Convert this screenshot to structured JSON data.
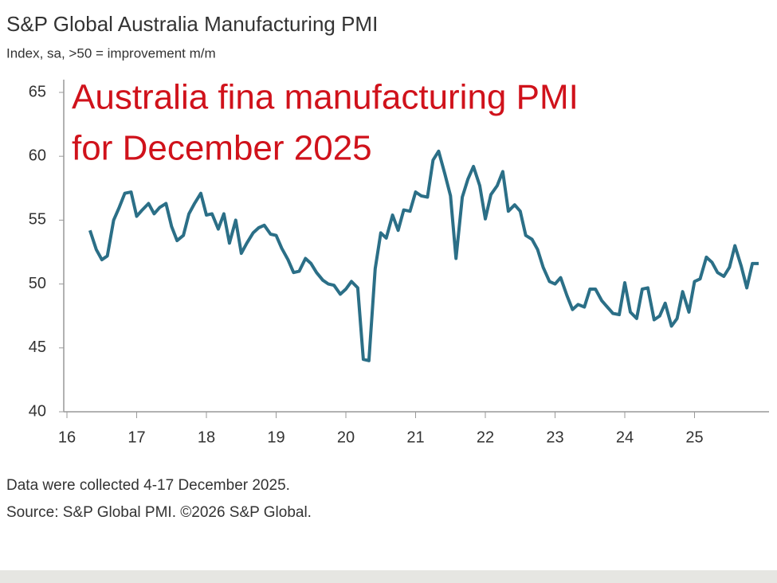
{
  "chart_data": {
    "type": "line",
    "title": "S&P Global Australia Manufacturing PMI",
    "subtitle": "Index, sa, >50 = improvement m/m",
    "annotations": [
      "Australia fina manufacturing PMI",
      "for December 2025"
    ],
    "footnotes": [
      "Data were collected 4-17 December 2025.",
      "Source: S&P Global PMI. ©2026 S&P Global."
    ],
    "xlim": [
      15.95,
      26.07
    ],
    "xticks": [
      16,
      17,
      18,
      19,
      20,
      21,
      22,
      23,
      24,
      25
    ],
    "ylim": [
      40,
      65
    ],
    "yticks": [
      40,
      45,
      50,
      55,
      60,
      65
    ],
    "series": [
      {
        "color": "#2b6f87",
        "x": [
          16.33,
          16.42,
          16.5,
          16.58,
          16.67,
          16.75,
          16.83,
          16.92,
          17,
          17.08,
          17.17,
          17.25,
          17.33,
          17.42,
          17.5,
          17.58,
          17.67,
          17.75,
          17.83,
          17.92,
          18,
          18.08,
          18.17,
          18.25,
          18.33,
          18.42,
          18.5,
          18.58,
          18.67,
          18.75,
          18.83,
          18.92,
          19,
          19.08,
          19.17,
          19.25,
          19.33,
          19.42,
          19.5,
          19.58,
          19.67,
          19.75,
          19.83,
          19.92,
          20,
          20.08,
          20.17,
          20.25,
          20.33,
          20.42,
          20.5,
          20.58,
          20.67,
          20.75,
          20.83,
          20.92,
          21,
          21.08,
          21.17,
          21.25,
          21.33,
          21.42,
          21.5,
          21.58,
          21.67,
          21.75,
          21.83,
          21.92,
          22,
          22.08,
          22.17,
          22.25,
          22.33,
          22.42,
          22.5,
          22.58,
          22.67,
          22.75,
          22.83,
          22.92,
          23,
          23.08,
          23.17,
          23.25,
          23.33,
          23.42,
          23.5,
          23.58,
          23.67,
          23.75,
          23.83,
          23.92,
          24,
          24.08,
          24.17,
          24.25,
          24.33,
          24.42,
          24.5,
          24.58,
          24.67,
          24.75,
          24.83,
          24.92,
          25,
          25.08,
          25.17,
          25.25,
          25.33,
          25.42,
          25.5,
          25.58,
          25.67,
          25.75,
          25.83,
          25.92
        ],
        "values": [
          54.2,
          52.7,
          51.9,
          52.2,
          55.0,
          56.0,
          57.1,
          57.2,
          55.3,
          55.8,
          56.3,
          55.5,
          56.0,
          56.3,
          54.5,
          53.4,
          53.8,
          55.5,
          56.3,
          57.1,
          55.4,
          55.5,
          54.3,
          55.5,
          53.2,
          55.0,
          52.4,
          53.2,
          54.0,
          54.4,
          54.6,
          53.9,
          53.8,
          52.8,
          51.9,
          50.9,
          51.0,
          52.0,
          51.6,
          50.9,
          50.3,
          50.0,
          49.9,
          49.2,
          49.6,
          50.2,
          49.7,
          44.1,
          44.0,
          51.2,
          54.0,
          53.6,
          55.4,
          54.2,
          55.8,
          55.7,
          57.2,
          56.9,
          56.8,
          59.7,
          60.4,
          58.6,
          56.9,
          52.0,
          56.8,
          58.2,
          59.2,
          57.7,
          55.1,
          57.0,
          57.7,
          58.8,
          55.7,
          56.2,
          55.7,
          53.8,
          53.5,
          52.7,
          51.3,
          50.2,
          50.0,
          50.5,
          49.1,
          48.0,
          48.4,
          48.2,
          49.6,
          49.6,
          48.7,
          48.2,
          47.7,
          47.6,
          50.1,
          47.8,
          47.3,
          49.6,
          49.7,
          47.2,
          47.5,
          48.5,
          46.7,
          47.3,
          49.4,
          47.8,
          50.2,
          50.4,
          52.1,
          51.7,
          50.9,
          50.6,
          51.3,
          53.0,
          51.4,
          49.7,
          51.6,
          51.6
        ]
      }
    ]
  }
}
